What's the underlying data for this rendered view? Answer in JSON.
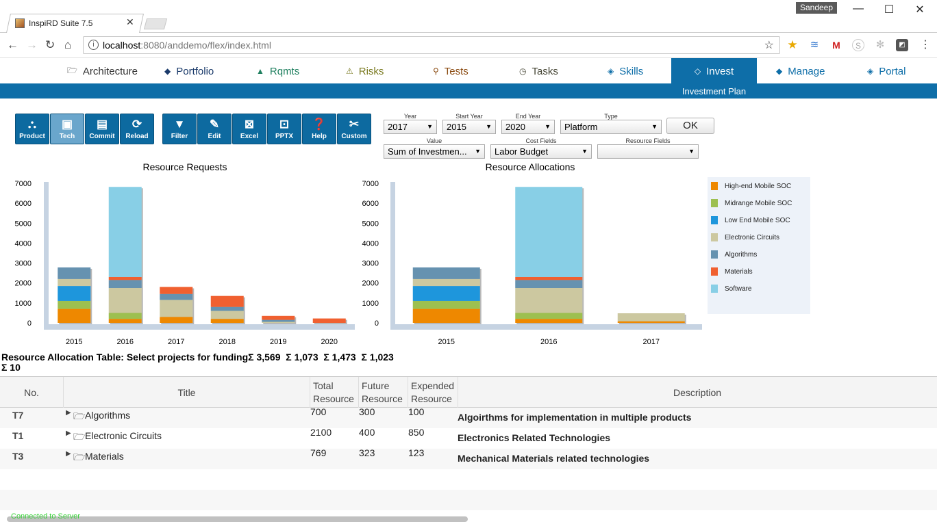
{
  "browser": {
    "tab_title": "InspiRD Suite 7.5",
    "user": "Sandeep",
    "url_host": "localhost",
    "url_rest": ":8080/anddemo/flex/index.html"
  },
  "nav": [
    {
      "label": "Architecture",
      "icon": "folder-icon"
    },
    {
      "label": "Portfolio",
      "icon": "diamond-icon"
    },
    {
      "label": "Rqmts",
      "icon": "pyramid-icon"
    },
    {
      "label": "Risks",
      "icon": "warning-icon"
    },
    {
      "label": "Tests",
      "icon": "search-icon"
    },
    {
      "label": "Tasks",
      "icon": "clock-icon"
    },
    {
      "label": "Skills",
      "icon": "skills-icon"
    },
    {
      "label": "Invest",
      "icon": "invest-icon"
    },
    {
      "label": "Manage",
      "icon": "manage-icon"
    },
    {
      "label": "Portal",
      "icon": "portal-icon"
    }
  ],
  "subtitle": "Investment Plan",
  "toolbar": [
    {
      "label": "Product",
      "icon": "network-icon"
    },
    {
      "label": "Tech",
      "icon": "chip-icon"
    },
    {
      "label": "Commit",
      "icon": "save-icon"
    },
    {
      "label": "Reload",
      "icon": "reload-icon"
    },
    {
      "label": "Filter",
      "icon": "filter-icon"
    },
    {
      "label": "Edit",
      "icon": "pencil-icon"
    },
    {
      "label": "Excel",
      "icon": "excel-icon"
    },
    {
      "label": "PPTX",
      "icon": "pptx-icon"
    },
    {
      "label": "Help",
      "icon": "help-icon"
    },
    {
      "label": "Custom",
      "icon": "tools-icon"
    }
  ],
  "filters": {
    "year_label": "Year",
    "year": "2017",
    "start_label": "Start Year",
    "start": "2015",
    "end_label": "End Year",
    "end": "2020",
    "type_label": "Type",
    "type": "Platform",
    "ok": "OK",
    "value_label": "Value",
    "value": "Sum of Investmen...",
    "cost_label": "Cost Fields",
    "cost": "Labor Budget",
    "resource_label": "Resource Fields",
    "resource": ""
  },
  "colors": {
    "high_end": "#ee8800",
    "midrange": "#9dc050",
    "low_end": "#1e96dc",
    "electronic": "#ccc8a0",
    "algorithms": "#6692b0",
    "materials": "#f06030",
    "software": "#88cfe6"
  },
  "legend": [
    "High-end Mobile SOC",
    "Midrange Mobile SOC",
    "Low End Mobile SOC",
    "Electronic Circuits",
    "Algorithms",
    "Materials",
    "Software"
  ],
  "chart_data": [
    {
      "type": "bar",
      "stacked": true,
      "title": "Resource Requests",
      "categories": [
        "2015",
        "2016",
        "2017",
        "2018",
        "2019",
        "2020"
      ],
      "ylim": [
        0,
        7000
      ],
      "yticks": [
        0,
        1000,
        2000,
        3000,
        4000,
        5000,
        6000,
        7000
      ],
      "series": [
        {
          "name": "High-end Mobile SOC",
          "values": [
            700,
            200,
            300,
            200,
            0,
            0
          ]
        },
        {
          "name": "Midrange Mobile SOC",
          "values": [
            400,
            300,
            0,
            0,
            0,
            0
          ]
        },
        {
          "name": "Low End Mobile SOC",
          "values": [
            750,
            0,
            0,
            0,
            0,
            0
          ]
        },
        {
          "name": "Electronic Circuits",
          "values": [
            350,
            1250,
            850,
            400,
            50,
            0
          ]
        },
        {
          "name": "Algorithms",
          "values": [
            580,
            400,
            300,
            200,
            100,
            0
          ]
        },
        {
          "name": "Materials",
          "values": [
            0,
            150,
            350,
            550,
            200,
            220
          ]
        },
        {
          "name": "Software",
          "values": [
            0,
            4520,
            0,
            0,
            0,
            0
          ]
        }
      ]
    },
    {
      "type": "bar",
      "stacked": true,
      "title": "Resource Allocations",
      "categories": [
        "2015",
        "2016",
        "2017"
      ],
      "ylim": [
        0,
        7000
      ],
      "yticks": [
        0,
        1000,
        2000,
        3000,
        4000,
        5000,
        6000,
        7000
      ],
      "series": [
        {
          "name": "High-end Mobile SOC",
          "values": [
            700,
            200,
            80
          ]
        },
        {
          "name": "Midrange Mobile SOC",
          "values": [
            400,
            300,
            0
          ]
        },
        {
          "name": "Low End Mobile SOC",
          "values": [
            750,
            0,
            0
          ]
        },
        {
          "name": "Electronic Circuits",
          "values": [
            350,
            1250,
            400
          ]
        },
        {
          "name": "Algorithms",
          "values": [
            580,
            400,
            0
          ]
        },
        {
          "name": "Materials",
          "values": [
            0,
            150,
            0
          ]
        },
        {
          "name": "Software",
          "values": [
            0,
            4520,
            0
          ]
        }
      ]
    }
  ],
  "table": {
    "caption": "Resource Allocation Table: Select projects for funding",
    "sums": [
      "Σ  3,569",
      "Σ  1,073",
      "Σ  1,473",
      "Σ  1,023"
    ],
    "sum2": "Σ 10",
    "headers": {
      "no": "No.",
      "title": "Title",
      "total": "Total Resource",
      "future": "Future Resource",
      "expended": "Expended Resource",
      "desc": "Description"
    },
    "rows": [
      {
        "no": "T7",
        "title": "Algorithms",
        "total": "700",
        "future": "300",
        "expended": "100",
        "desc": "Algoirthms for implementation in multiple products"
      },
      {
        "no": "T1",
        "title": "Electronic Circuits",
        "total": "2100",
        "future": "400",
        "expended": "850",
        "desc": "Electronics Related Technologies"
      },
      {
        "no": "T3",
        "title": "Materials",
        "total": "769",
        "future": "323",
        "expended": "123",
        "desc": "Mechanical Materials related technologies"
      }
    ]
  },
  "status": "Connected to Server"
}
